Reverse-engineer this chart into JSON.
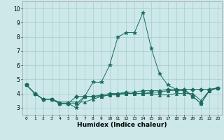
{
  "xlabel": "Humidex (Indice chaleur)",
  "ylabel": "",
  "background_color": "#cce8e8",
  "line_color": "#1a6b5e",
  "grid_color": "#aacccc",
  "xlim": [
    -0.5,
    23.5
  ],
  "ylim": [
    2.5,
    10.5
  ],
  "xticks": [
    0,
    1,
    2,
    3,
    4,
    5,
    6,
    7,
    8,
    9,
    10,
    11,
    12,
    13,
    14,
    15,
    16,
    17,
    18,
    19,
    20,
    21,
    22,
    23
  ],
  "yticks": [
    3,
    4,
    5,
    6,
    7,
    8,
    9,
    10
  ],
  "series": [
    [
      4.6,
      4.0,
      3.6,
      3.6,
      3.3,
      3.3,
      3.0,
      3.8,
      4.8,
      4.8,
      6.0,
      8.0,
      8.3,
      8.3,
      9.7,
      7.2,
      5.4,
      4.6,
      4.3,
      4.3,
      3.8,
      3.3,
      4.2,
      4.4
    ],
    [
      4.6,
      4.0,
      3.6,
      3.6,
      3.3,
      3.3,
      3.8,
      3.8,
      3.8,
      3.9,
      4.0,
      4.0,
      4.1,
      4.1,
      4.2,
      4.2,
      4.2,
      4.3,
      4.3,
      4.3,
      4.3,
      4.3,
      4.3,
      4.4
    ],
    [
      4.6,
      4.0,
      3.6,
      3.6,
      3.4,
      3.4,
      3.4,
      3.4,
      3.6,
      3.8,
      3.9,
      4.0,
      4.0,
      4.0,
      4.0,
      4.0,
      3.9,
      3.9,
      4.0,
      4.0,
      4.0,
      3.5,
      4.2,
      4.4
    ],
    [
      4.6,
      4.0,
      3.6,
      3.6,
      3.3,
      3.3,
      3.3,
      3.8,
      3.8,
      3.8,
      3.9,
      3.9,
      4.0,
      4.0,
      4.0,
      4.1,
      4.1,
      4.2,
      4.2,
      4.2,
      3.8,
      3.3,
      4.2,
      4.4
    ]
  ],
  "markers": [
    "*",
    "D",
    "^",
    "s"
  ],
  "marker_sizes": [
    4,
    3,
    3,
    3
  ]
}
